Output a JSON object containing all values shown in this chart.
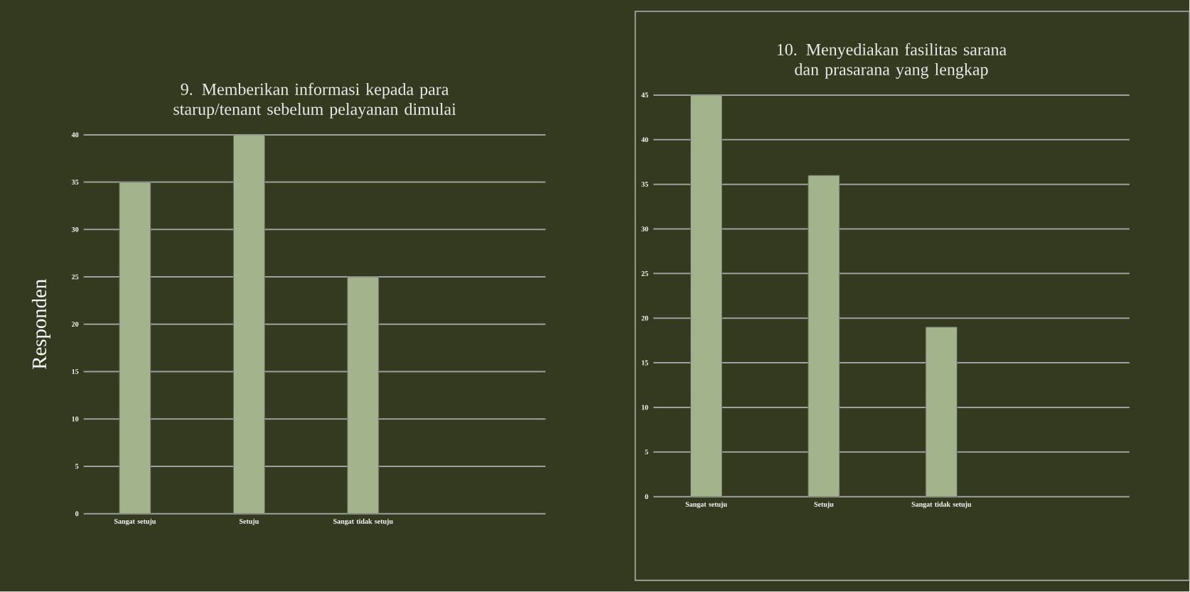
{
  "chart_data": [
    {
      "type": "bar",
      "title": "9. Memberikan informasi kepada para starup/tenant sebelum pelayanan dimulai",
      "ylabel": "Responden",
      "categories": [
        "Sangat setuju",
        "Setuju",
        "Sangat tidak setuju"
      ],
      "values": [
        35,
        40,
        25
      ],
      "color": "#a3b38c",
      "ylim": [
        0,
        40
      ],
      "yticks": [
        0,
        5,
        10,
        15,
        20,
        25,
        30,
        35,
        40
      ],
      "grid": "y"
    },
    {
      "type": "bar",
      "title": "10. Menyediakan fasilitas sarana dan prasarana yang lengkap",
      "categories": [
        "Sangat setuju",
        "Setuju",
        "Sangat tidak setuju"
      ],
      "values": [
        45,
        36,
        19
      ],
      "color": "#a3b38c",
      "ylim": [
        0,
        45
      ],
      "yticks": [
        0,
        5,
        10,
        15,
        20,
        25,
        30,
        35,
        40,
        45
      ],
      "grid": "y"
    }
  ]
}
